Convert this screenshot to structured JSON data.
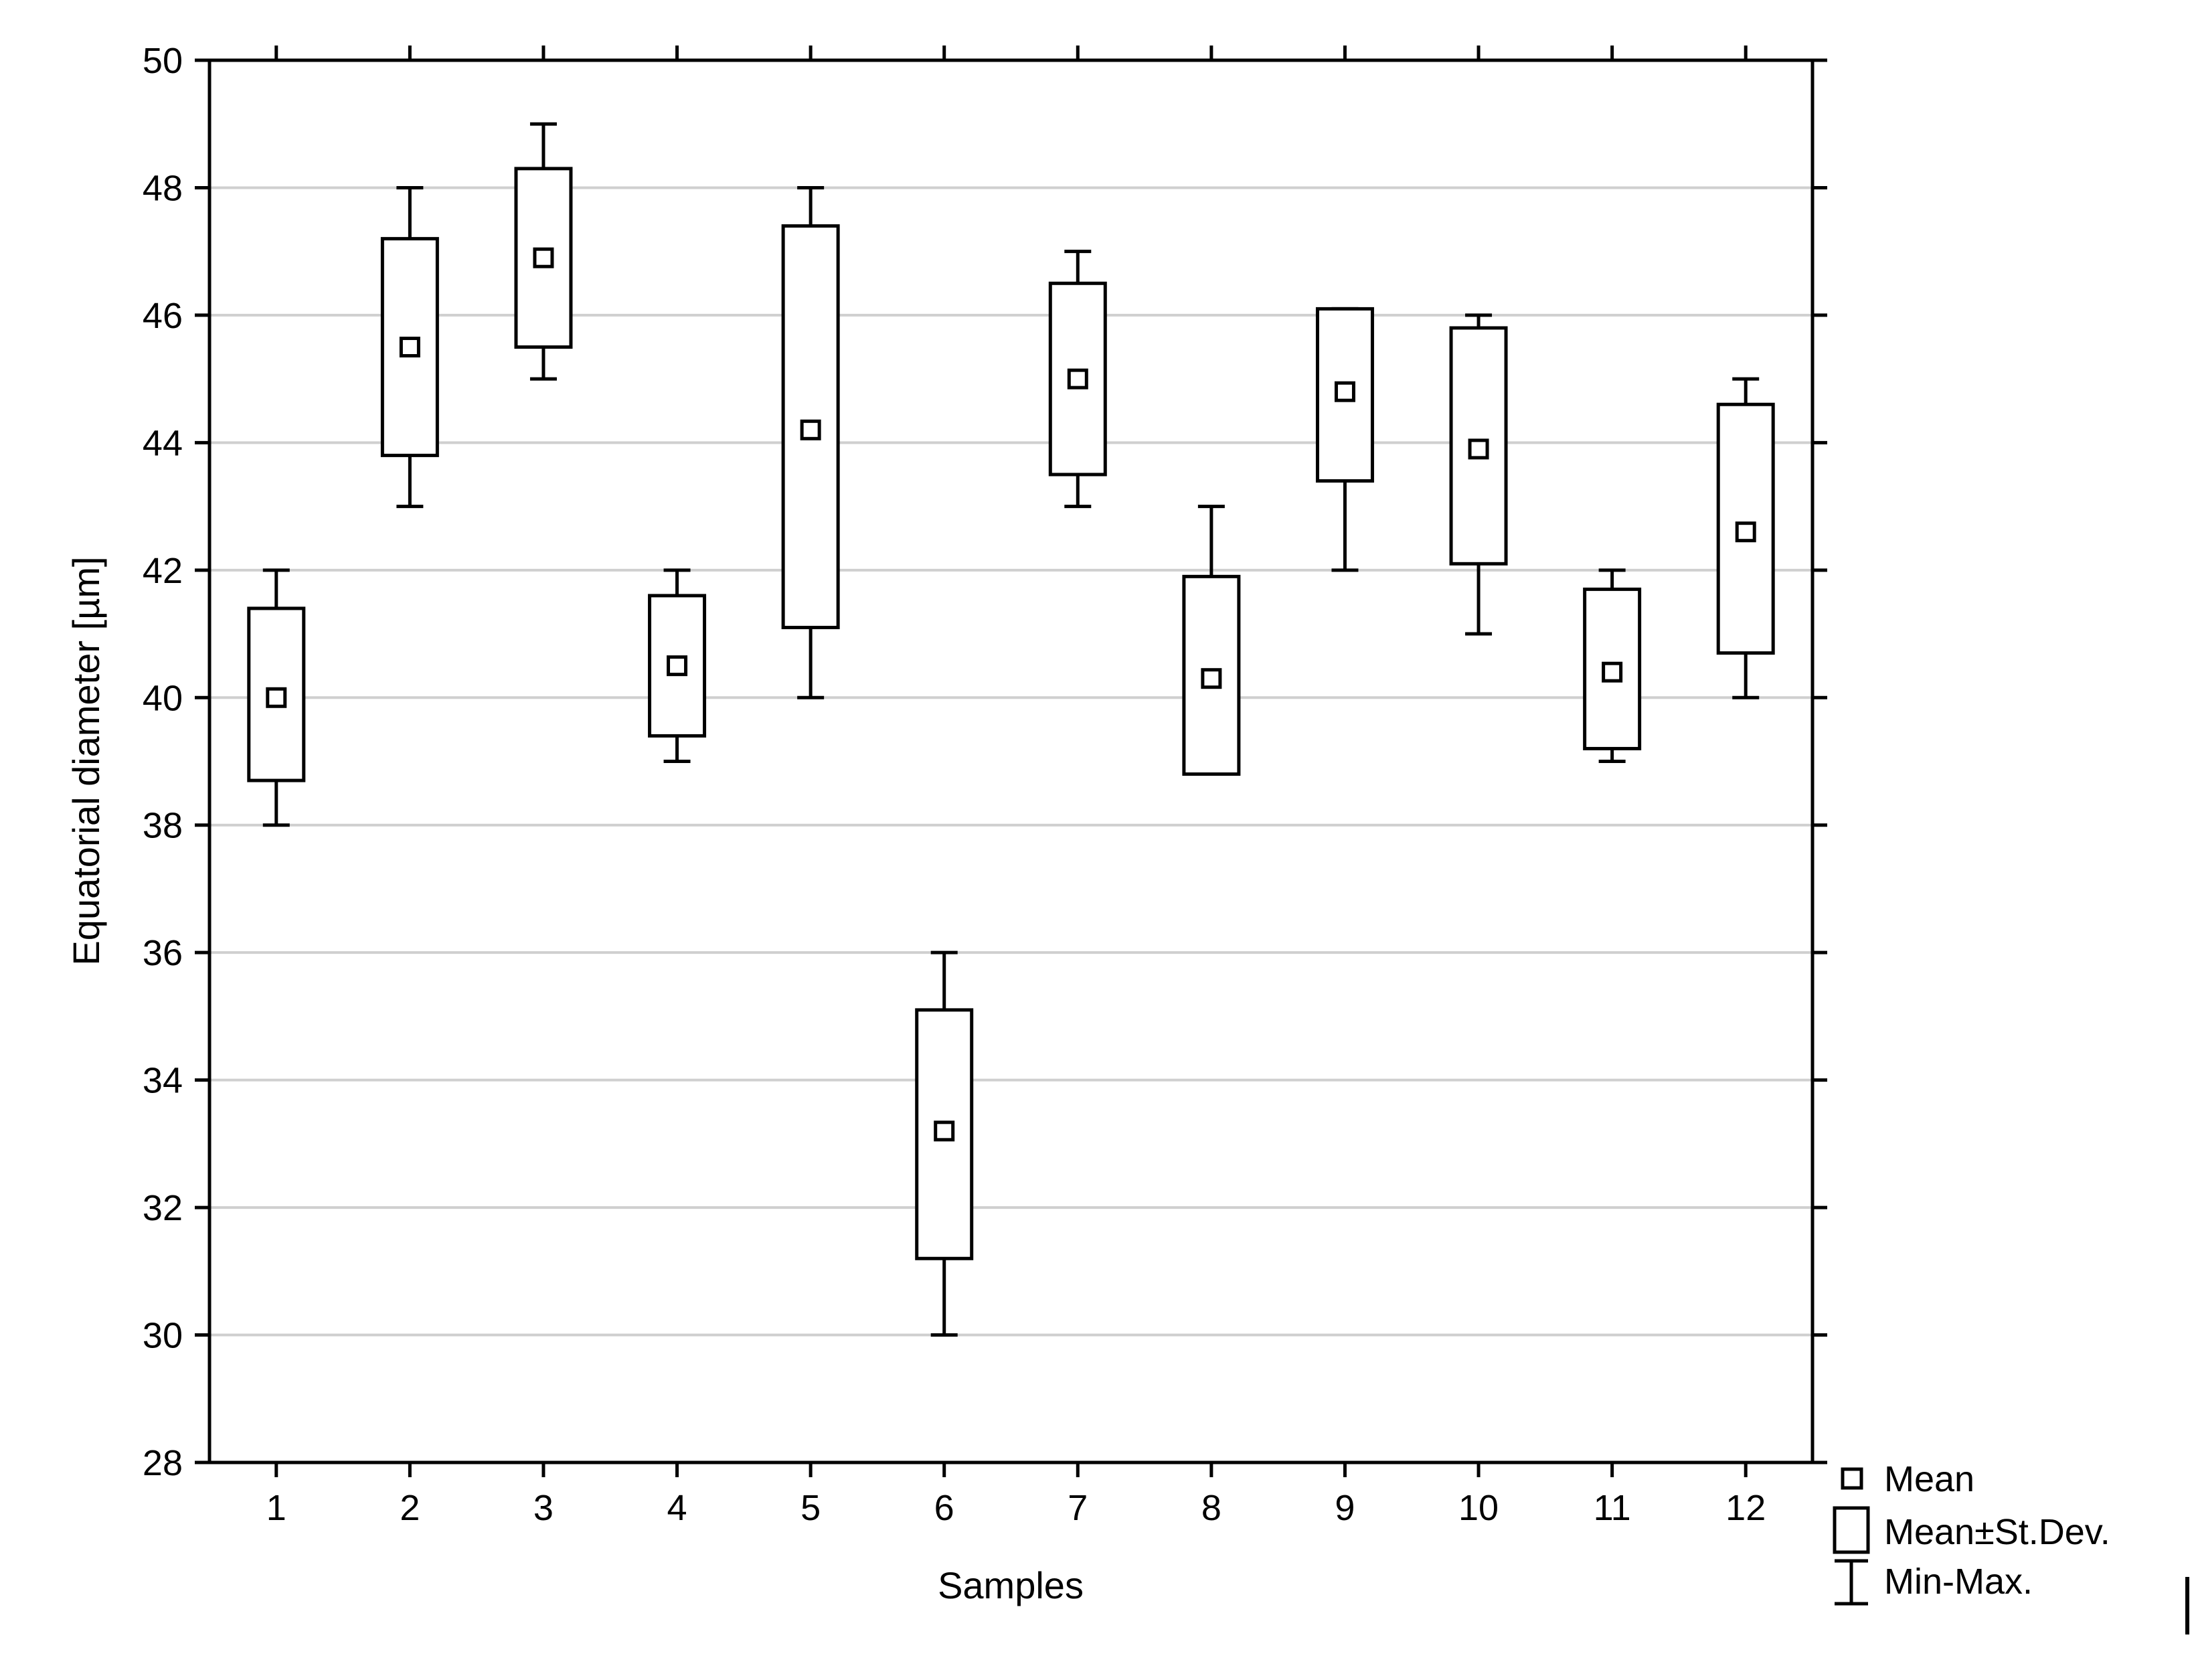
{
  "chart_data": {
    "type": "box",
    "title": "",
    "xlabel": "Samples",
    "ylabel": "Equatorial diameter [µm]",
    "ylim": [
      28,
      50
    ],
    "yticks": [
      28,
      30,
      32,
      34,
      36,
      38,
      40,
      42,
      44,
      46,
      48,
      50
    ],
    "grid": "horizontal",
    "legend_position": "bottom-right",
    "legend": {
      "mean": "Mean",
      "sd": "Mean±St.Dev.",
      "minmax": "Min-Max."
    },
    "categories": [
      "1",
      "2",
      "3",
      "4",
      "5",
      "6",
      "7",
      "8",
      "9",
      "10",
      "11",
      "12"
    ],
    "mean": [
      40.0,
      45.5,
      46.9,
      40.5,
      44.2,
      33.2,
      45.0,
      40.3,
      44.8,
      43.9,
      40.4,
      42.6
    ],
    "sd_low": [
      38.7,
      43.8,
      45.5,
      39.4,
      41.1,
      31.2,
      43.5,
      38.8,
      43.4,
      42.1,
      39.2,
      40.7
    ],
    "sd_high": [
      41.4,
      47.2,
      48.3,
      41.6,
      47.4,
      35.1,
      46.5,
      41.9,
      46.1,
      45.8,
      41.7,
      44.6
    ],
    "min": [
      38,
      43,
      45,
      39,
      40,
      30,
      43,
      38.8,
      42,
      41,
      39,
      40
    ],
    "max": [
      42,
      48,
      49,
      42,
      48,
      36,
      47,
      43,
      46.1,
      46,
      42,
      45
    ]
  }
}
